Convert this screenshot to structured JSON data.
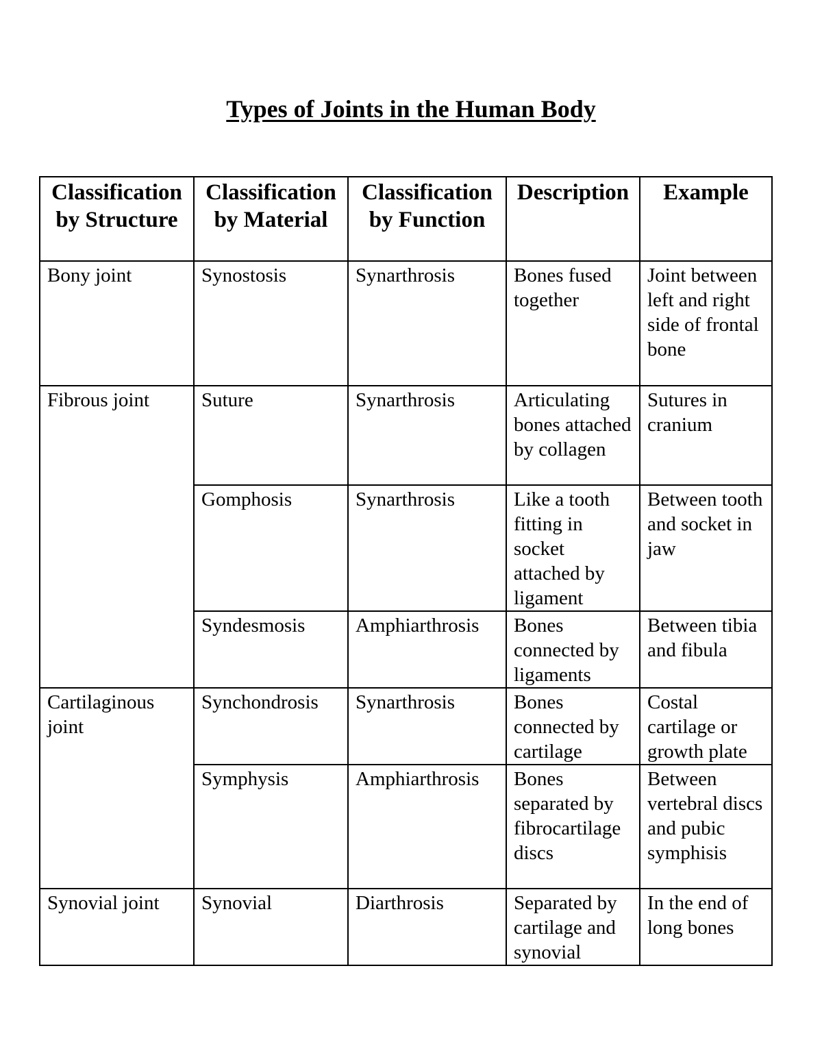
{
  "title": "Types of Joints in the Human Body",
  "table": {
    "headers": [
      "Classification by Structure",
      "Classification by Material",
      "Classification by Function",
      "Description",
      "Example"
    ],
    "rows": [
      {
        "structure": "Bony joint",
        "material": "Synostosis",
        "function": "Synarthrosis",
        "description": "Bones fused together",
        "example": "Joint between left and right side of frontal bone"
      },
      {
        "structure": "Fibrous joint",
        "material": "Suture",
        "function": "Synarthrosis",
        "description": "Articulating bones attached by collagen",
        "example": "Sutures in cranium"
      },
      {
        "material": "Gomphosis",
        "function": "Synarthrosis",
        "description": "Like a tooth fitting in socket attached by ligament",
        "example": "Between tooth and socket in jaw"
      },
      {
        "material": "Syndesmosis",
        "function": "Amphiarthrosis",
        "description": "Bones connected by ligaments",
        "example": "Between tibia and fibula"
      },
      {
        "structure": "Cartilaginous joint",
        "material": "Synchondrosis",
        "function": "Synarthrosis",
        "description": "Bones connected by cartilage",
        "example": "Costal cartilage or growth plate"
      },
      {
        "material": "Symphysis",
        "function": "Amphiarthrosis",
        "description": "Bones separated by fibrocartilage discs",
        "example": "Between vertebral discs and pubic symphisis"
      },
      {
        "structure": "Synovial joint",
        "material": "Synovial",
        "function": "Diarthrosis",
        "description": "Separated by cartilage and synovial",
        "example": "In the end of long bones"
      }
    ]
  }
}
